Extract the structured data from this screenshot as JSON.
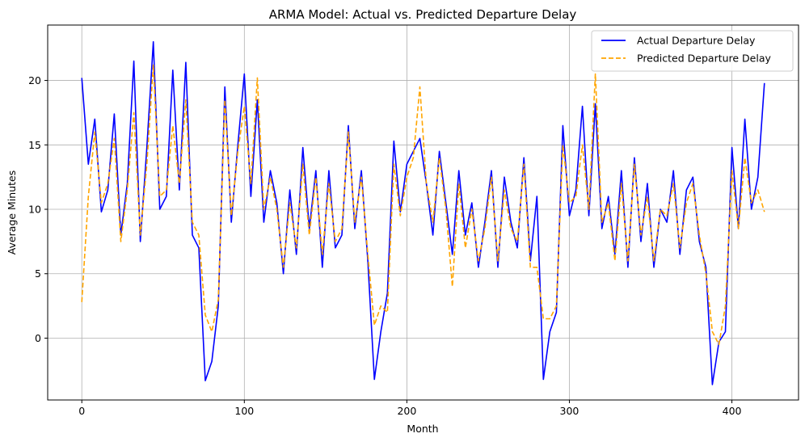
{
  "chart_data": {
    "type": "line",
    "title": "ARMA Model: Actual vs. Predicted Departure Delay",
    "xlabel": "Month",
    "ylabel": "Average Minutes",
    "xlim": [
      -21,
      441
    ],
    "ylim": [
      -4.8,
      24.3
    ],
    "xticks": [
      0,
      100,
      200,
      300,
      400
    ],
    "yticks": [
      0,
      5,
      10,
      15,
      20
    ],
    "grid": true,
    "legend_position": "top-right",
    "x": [
      0,
      4,
      8,
      12,
      16,
      20,
      24,
      28,
      32,
      36,
      40,
      44,
      48,
      52,
      56,
      60,
      64,
      68,
      72,
      76,
      80,
      84,
      88,
      92,
      96,
      100,
      104,
      108,
      112,
      116,
      120,
      124,
      128,
      132,
      136,
      140,
      144,
      148,
      152,
      156,
      160,
      164,
      168,
      172,
      176,
      180,
      184,
      188,
      192,
      196,
      200,
      204,
      208,
      212,
      216,
      220,
      224,
      228,
      232,
      236,
      240,
      244,
      248,
      252,
      256,
      260,
      264,
      268,
      272,
      276,
      280,
      284,
      288,
      292,
      296,
      300,
      304,
      308,
      312,
      316,
      320,
      324,
      328,
      332,
      336,
      340,
      344,
      348,
      352,
      356,
      360,
      364,
      368,
      372,
      376,
      380,
      384,
      388,
      392,
      396,
      400,
      404,
      408,
      412,
      416,
      420
    ],
    "series": [
      {
        "name": "Actual Departure Delay",
        "color": "#0000ff",
        "style": "solid",
        "values": [
          20.2,
          13.5,
          17.0,
          9.8,
          11.5,
          17.4,
          8.0,
          12.0,
          21.5,
          7.5,
          14.8,
          23.0,
          10.0,
          11.0,
          20.8,
          11.5,
          21.4,
          8.0,
          7.0,
          -3.3,
          -1.8,
          2.5,
          19.5,
          9.0,
          15.0,
          20.5,
          11.0,
          18.5,
          9.0,
          13.0,
          10.5,
          5.0,
          11.5,
          6.5,
          14.8,
          8.5,
          13.0,
          5.5,
          13.0,
          7.0,
          8.0,
          16.5,
          8.5,
          13.0,
          6.0,
          -3.2,
          0.5,
          3.5,
          15.3,
          9.8,
          13.5,
          14.5,
          15.5,
          12.0,
          8.0,
          14.5,
          10.5,
          6.5,
          13.0,
          8.0,
          10.5,
          5.5,
          9.0,
          13.0,
          5.5,
          12.5,
          9.0,
          7.0,
          14.0,
          6.0,
          11.0,
          -3.2,
          0.5,
          2.0,
          16.5,
          9.5,
          11.5,
          18.0,
          9.5,
          18.2,
          8.5,
          11.0,
          6.5,
          13.0,
          5.5,
          14.0,
          7.5,
          12.0,
          5.5,
          10.0,
          9.0,
          13.0,
          6.5,
          11.5,
          12.5,
          7.5,
          5.5,
          -3.6,
          -0.3,
          0.5,
          14.8,
          8.5,
          17.0,
          10.0,
          12.5,
          19.8
        ]
      },
      {
        "name": "Predicted Departure Delay",
        "color": "#ffa500",
        "style": "dashed",
        "values": [
          2.8,
          11.0,
          16.0,
          10.5,
          12.0,
          15.5,
          7.5,
          11.5,
          17.5,
          8.0,
          13.5,
          21.2,
          11.0,
          11.5,
          16.5,
          12.0,
          18.5,
          9.0,
          8.0,
          1.8,
          0.5,
          3.0,
          18.5,
          9.5,
          14.5,
          18.0,
          12.0,
          20.2,
          10.0,
          12.5,
          10.0,
          5.5,
          10.5,
          7.0,
          13.5,
          8.0,
          12.5,
          6.5,
          12.0,
          7.5,
          8.5,
          16.0,
          9.0,
          12.5,
          6.5,
          1.0,
          2.5,
          2.0,
          13.5,
          9.5,
          12.5,
          14.0,
          19.5,
          12.0,
          9.0,
          14.0,
          10.0,
          4.0,
          12.0,
          7.0,
          10.0,
          6.0,
          8.5,
          12.5,
          6.0,
          11.5,
          8.5,
          7.5,
          13.5,
          5.5,
          5.5,
          1.5,
          1.5,
          2.5,
          15.0,
          10.5,
          11.0,
          15.0,
          10.0,
          20.5,
          9.0,
          10.5,
          6.0,
          12.0,
          6.0,
          13.5,
          8.0,
          11.0,
          6.0,
          10.0,
          9.5,
          12.0,
          7.0,
          10.5,
          12.0,
          8.0,
          5.0,
          0.5,
          -0.5,
          2.5,
          13.0,
          8.5,
          14.0,
          10.5,
          11.5,
          9.8
        ]
      }
    ]
  }
}
